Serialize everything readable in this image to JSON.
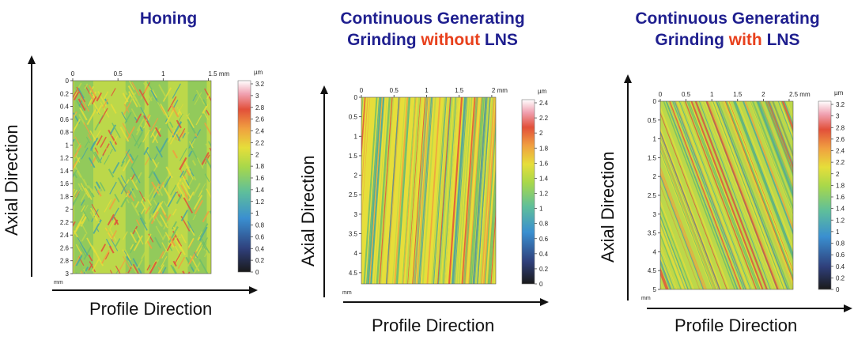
{
  "panels": [
    {
      "title_lines": [
        {
          "parts": [
            {
              "text": "Honing",
              "hl": false
            }
          ]
        }
      ],
      "axial_label": "Axial Direction",
      "profile_label": "Profile Direction",
      "x_ticks": [
        "0",
        "0.5",
        "1",
        "1.5 mm"
      ],
      "y_ticks": [
        "0",
        "0.2",
        "0.4",
        "0.6",
        "0.8",
        "1",
        "1.2",
        "1.4",
        "1.6",
        "1.8",
        "2",
        "2.2",
        "2.4",
        "2.6",
        "2.8",
        "3"
      ],
      "unit_label": "mm",
      "colorbar_unit": "µm",
      "colorbar_ticks": [
        "3.2",
        "3",
        "2.8",
        "2.6",
        "2.4",
        "2.2",
        "2",
        "1.8",
        "1.6",
        "1.4",
        "1.2",
        "1",
        "0.8",
        "0.6",
        "0.4",
        "0.2",
        "0"
      ],
      "texture": "honing"
    },
    {
      "title_lines": [
        {
          "parts": [
            {
              "text": "Continuous Generating",
              "hl": false
            }
          ]
        },
        {
          "parts": [
            {
              "text": "Grinding ",
              "hl": false
            },
            {
              "text": "without",
              "hl": true
            },
            {
              "text": " LNS",
              "hl": false
            }
          ]
        }
      ],
      "axial_label": "Axial Direction",
      "profile_label": "Profile Direction",
      "x_ticks": [
        "0",
        "0.5",
        "1",
        "1.5",
        "2 mm"
      ],
      "y_ticks": [
        "0",
        "0.5",
        "1",
        "1.5",
        "2",
        "2.5",
        "3",
        "3.5",
        "4",
        "4.5"
      ],
      "unit_label": "mm",
      "colorbar_unit": "µm",
      "colorbar_ticks": [
        "2.4",
        "2.2",
        "2",
        "1.8",
        "1.6",
        "1.4",
        "1.2",
        "1",
        "0.8",
        "0.6",
        "0.4",
        "0.2",
        "0"
      ],
      "texture": "straight"
    },
    {
      "title_lines": [
        {
          "parts": [
            {
              "text": "Continuous Generating",
              "hl": false
            }
          ]
        },
        {
          "parts": [
            {
              "text": "Grinding ",
              "hl": false
            },
            {
              "text": "with",
              "hl": true
            },
            {
              "text": " LNS",
              "hl": false
            }
          ]
        }
      ],
      "axial_label": "Axial Direction",
      "profile_label": "Profile Direction",
      "x_ticks": [
        "0",
        "0.5",
        "1",
        "1.5",
        "2",
        "2.5 mm"
      ],
      "y_ticks": [
        "0",
        "0.5",
        "1",
        "1.5",
        "2",
        "2.5",
        "3",
        "3.5",
        "4",
        "4.5",
        "5"
      ],
      "unit_label": "mm",
      "colorbar_unit": "µm",
      "colorbar_ticks": [
        "3.2",
        "3",
        "2.8",
        "2.6",
        "2.4",
        "2.2",
        "2",
        "1.8",
        "1.6",
        "1.4",
        "1.2",
        "1",
        "0.8",
        "0.6",
        "0.4",
        "0.2",
        "0"
      ],
      "texture": "diagonal"
    }
  ],
  "colors": {
    "title": "#1f1f8f",
    "highlight": "#e8401c",
    "yellow": "#e6de3a",
    "yellow_green": "#bcd84a",
    "green": "#6fbf6a",
    "teal": "#4aa6a0",
    "orange": "#f0a040",
    "red": "#e2503a"
  }
}
